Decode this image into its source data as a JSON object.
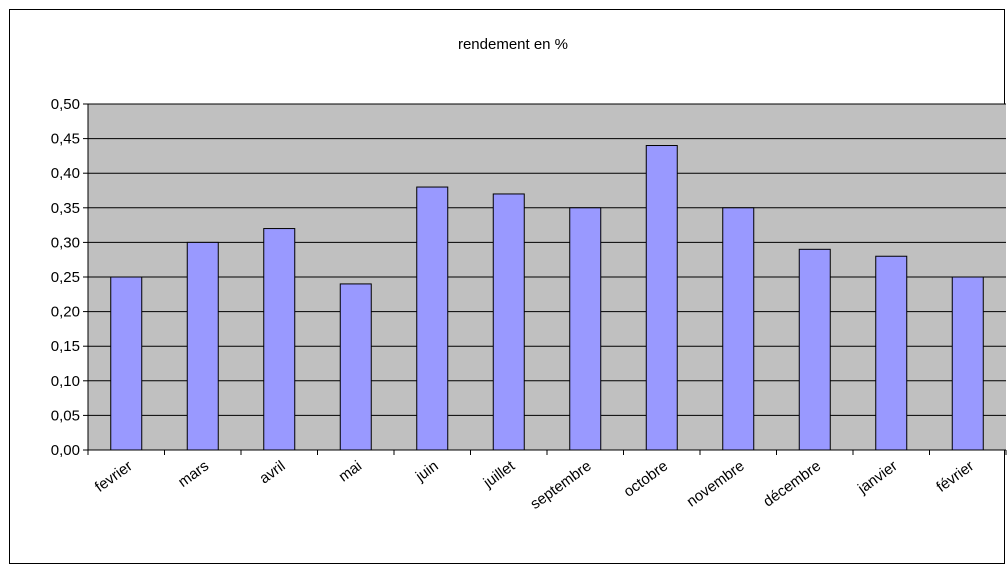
{
  "chart_data": {
    "type": "bar",
    "title": "rendement en %",
    "xlabel": "",
    "ylabel": "",
    "categories": [
      "fevrier",
      "mars",
      "avril",
      "mai",
      "juin",
      "juillet",
      "septembre",
      "octobre",
      "novembre",
      "décembre",
      "janvier",
      "février"
    ],
    "values": [
      0.25,
      0.3,
      0.32,
      0.24,
      0.38,
      0.37,
      0.35,
      0.44,
      0.35,
      0.29,
      0.28,
      0.25
    ],
    "ylim": [
      0,
      0.5
    ],
    "yticks": [
      "0,00",
      "0,05",
      "0,10",
      "0,15",
      "0,20",
      "0,25",
      "0,30",
      "0,35",
      "0,40",
      "0,45",
      "0,50"
    ],
    "grid": true,
    "legend": "none",
    "colors": {
      "bar_fill": "#9999ff",
      "plot_background": "#c0c0c0",
      "gridline": "#000000"
    }
  }
}
